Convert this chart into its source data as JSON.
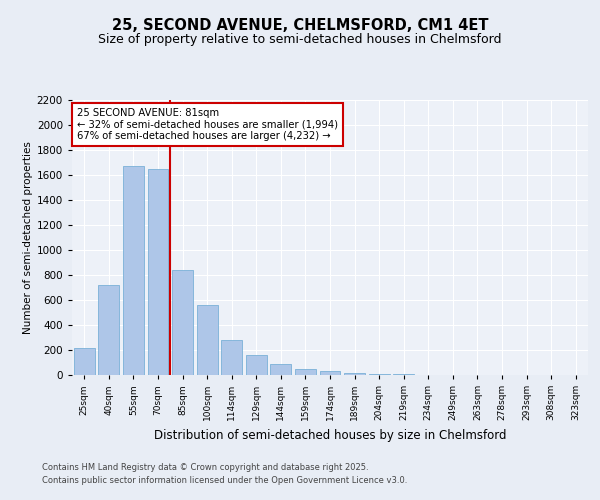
{
  "title": "25, SECOND AVENUE, CHELMSFORD, CM1 4ET",
  "subtitle": "Size of property relative to semi-detached houses in Chelmsford",
  "xlabel": "Distribution of semi-detached houses by size in Chelmsford",
  "ylabel": "Number of semi-detached properties",
  "bin_labels": [
    "25sqm",
    "40sqm",
    "55sqm",
    "70sqm",
    "85sqm",
    "100sqm",
    "114sqm",
    "129sqm",
    "144sqm",
    "159sqm",
    "174sqm",
    "189sqm",
    "204sqm",
    "219sqm",
    "234sqm",
    "249sqm",
    "263sqm",
    "278sqm",
    "293sqm",
    "308sqm",
    "323sqm"
  ],
  "bar_values": [
    220,
    720,
    1670,
    1650,
    840,
    560,
    280,
    160,
    90,
    50,
    30,
    15,
    10,
    5,
    3,
    2,
    2,
    1,
    1,
    1,
    0
  ],
  "bar_color": "#aec6e8",
  "bar_edge_color": "#7ab0d8",
  "vline_color": "#cc0000",
  "property_label": "25 SECOND AVENUE: 81sqm",
  "pct_smaller": "32% of semi-detached houses are smaller (1,994)",
  "pct_larger": "67% of semi-detached houses are larger (4,232)",
  "ylim": [
    0,
    2200
  ],
  "yticks": [
    0,
    200,
    400,
    600,
    800,
    1000,
    1200,
    1400,
    1600,
    1800,
    2000,
    2200
  ],
  "bg_color": "#e8edf5",
  "plot_bg_color": "#edf1f8",
  "footer_line1": "Contains HM Land Registry data © Crown copyright and database right 2025.",
  "footer_line2": "Contains public sector information licensed under the Open Government Licence v3.0.",
  "annotation_box_color": "#cc0000",
  "title_fontsize": 10.5,
  "subtitle_fontsize": 9
}
